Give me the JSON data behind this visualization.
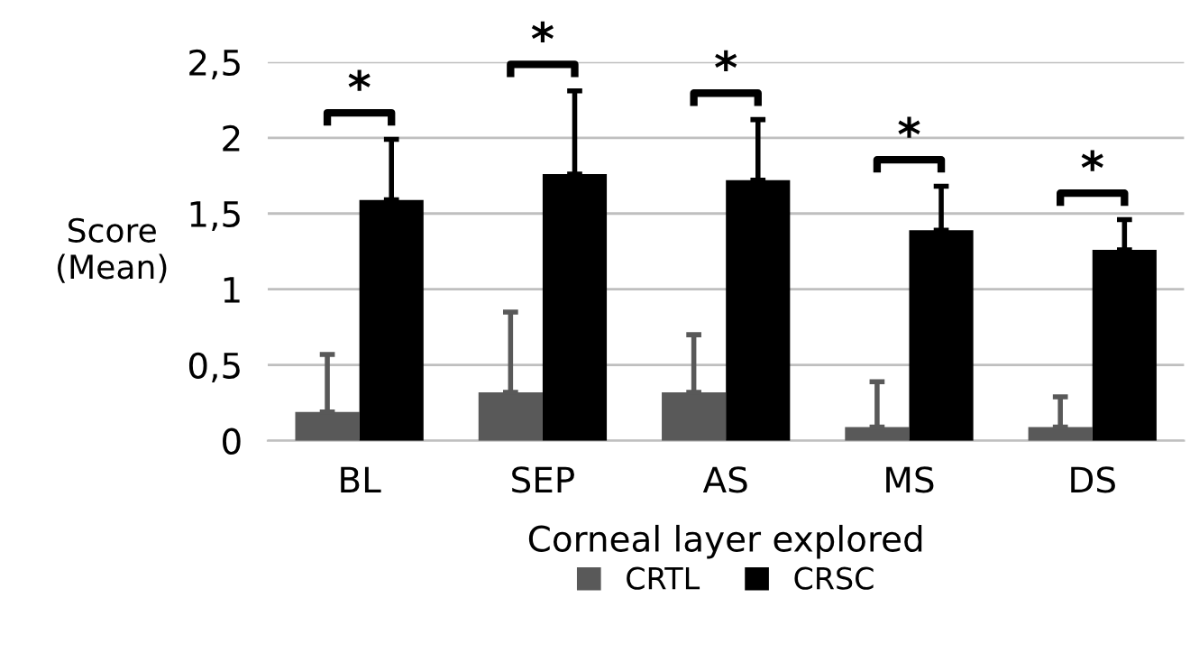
{
  "chart_data": {
    "type": "bar",
    "xlabel": "Corneal layer explored",
    "ylabel": "Score\n(Mean)",
    "categories": [
      "BL",
      "SEP",
      "AS",
      "MS",
      "DS"
    ],
    "series": [
      {
        "name": "CRTL",
        "color": "#595959",
        "values": [
          0.19,
          0.32,
          0.32,
          0.09,
          0.09
        ],
        "errors": [
          [
            0.19,
            0.57
          ],
          [
            0.32,
            0.85
          ],
          [
            0.32,
            0.7
          ],
          [
            0.09,
            0.39
          ],
          [
            0.09,
            0.29
          ]
        ]
      },
      {
        "name": "CRSC",
        "color": "#000000",
        "values": [
          1.59,
          1.76,
          1.72,
          1.39,
          1.26
        ],
        "errors": [
          [
            1.59,
            1.99
          ],
          [
            1.76,
            2.31
          ],
          [
            1.72,
            2.12
          ],
          [
            1.39,
            1.68
          ],
          [
            1.26,
            1.46
          ]
        ]
      }
    ],
    "annotations": [
      "*",
      "*",
      "*",
      "*",
      "*"
    ],
    "ylim": [
      0,
      2.5
    ],
    "yticks": [
      0,
      {
        "value": 0.5,
        "label": "0,5"
      },
      1,
      {
        "value": 1.5,
        "label": "1,5"
      },
      2,
      {
        "value": 2.5,
        "label": "2,5"
      }
    ],
    "grid": "y",
    "legend": "bottom"
  }
}
